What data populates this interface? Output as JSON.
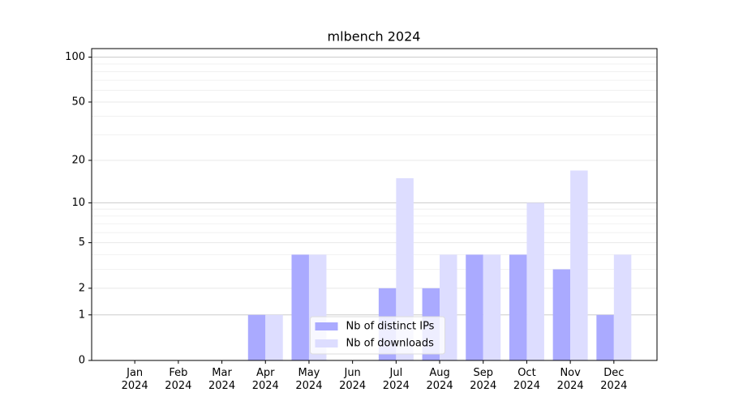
{
  "chart_data": {
    "type": "bar",
    "title": "mlbench 2024",
    "categories": [
      "Jan\n2024",
      "Feb\n2024",
      "Mar\n2024",
      "Apr\n2024",
      "May\n2024",
      "Jun\n2024",
      "Jul\n2024",
      "Aug\n2024",
      "Sep\n2024",
      "Oct\n2024",
      "Nov\n2024",
      "Dec\n2024"
    ],
    "series": [
      {
        "name": "Nb of distinct IPs",
        "color": "#aaaaff",
        "values": [
          0,
          0,
          0,
          1,
          4,
          0,
          2,
          2,
          4,
          4,
          3,
          1
        ]
      },
      {
        "name": "Nb of downloads",
        "color": "#ddddff",
        "values": [
          0,
          0,
          0,
          1,
          4,
          0,
          15,
          4,
          4,
          10,
          17,
          4
        ]
      }
    ],
    "yscale": "log1p",
    "ylim": [
      0,
      114
    ],
    "yticks": [
      0,
      1,
      2,
      5,
      10,
      20,
      50,
      100
    ],
    "minor_yticks": [
      3,
      4,
      6,
      7,
      8,
      9,
      30,
      40,
      60,
      70,
      80,
      90
    ],
    "grid": true,
    "legend": "lower center"
  }
}
